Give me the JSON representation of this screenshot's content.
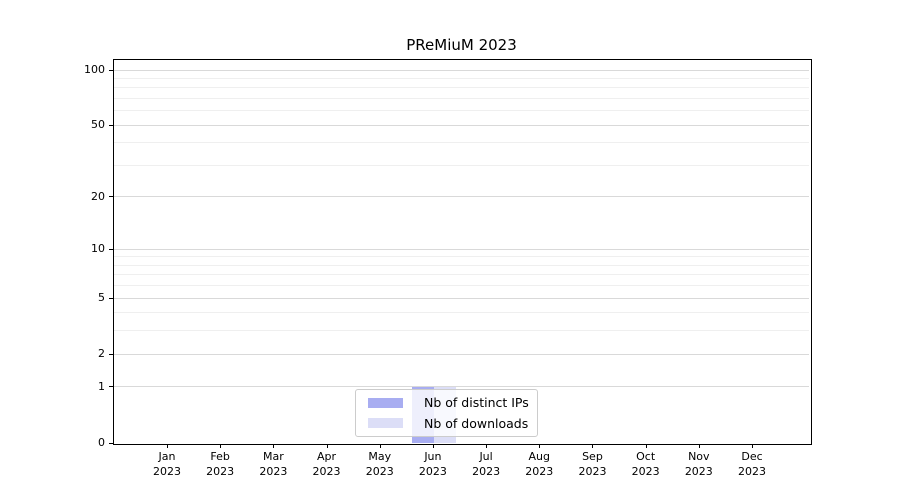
{
  "chart_data": {
    "type": "bar",
    "title": "PReMiuM 2023",
    "categories": [
      "Jan",
      "Feb",
      "Mar",
      "Apr",
      "May",
      "Jun",
      "Jul",
      "Aug",
      "Sep",
      "Oct",
      "Nov",
      "Dec"
    ],
    "year_label": "2023",
    "series": [
      {
        "name": "Nb of distinct IPs",
        "color": "#a8adf1",
        "values": [
          0,
          0,
          0,
          0,
          0,
          1,
          0,
          0,
          0,
          0,
          0,
          0
        ]
      },
      {
        "name": "Nb of downloads",
        "color": "#dcdef7",
        "values": [
          0,
          0,
          0,
          0,
          0,
          1,
          0,
          0,
          0,
          0,
          0,
          0
        ]
      }
    ],
    "yscale": "log1p",
    "ylim": [
      0,
      100
    ],
    "y_major_ticks": [
      0,
      1,
      2,
      5,
      10,
      20,
      50,
      100
    ],
    "y_minor_gridlines": [
      3,
      4,
      6,
      7,
      8,
      9,
      30,
      40,
      60,
      70,
      80,
      90
    ],
    "grid": true,
    "legend_position": "lower center",
    "colors": {
      "major_grid": "#d9d9d9",
      "minor_grid": "#efefef",
      "axis": "#000000",
      "text": "#000000",
      "background": "#ffffff"
    }
  }
}
